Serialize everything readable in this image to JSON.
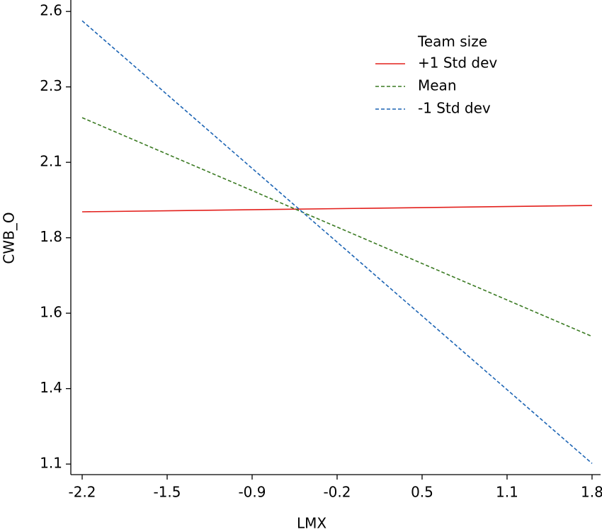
{
  "chart_data": {
    "type": "line",
    "x_label": "LMX",
    "y_label": "CWB_O",
    "legend_title": "Team size",
    "legend": "top-right",
    "x": [
      -2.2,
      1.8
    ],
    "series": [
      {
        "name": "+1 Std dev",
        "color": "#e3201c",
        "dash": "solid",
        "values": [
          1.936,
          1.957
        ]
      },
      {
        "name": "Mean",
        "color": "#3a7a22",
        "dash": "dashed",
        "values": [
          2.248,
          1.523
        ]
      },
      {
        "name": "-1 Std dev",
        "color": "#1c64b4",
        "dash": "dashed",
        "values": [
          2.569,
          1.102
        ]
      }
    ],
    "xlim": [
      -2.289,
      1.867
    ],
    "ylim": [
      1.065,
      2.638
    ],
    "xticks": [
      -2.2,
      {
        "value": -1.5333,
        "label": "-1.5"
      },
      {
        "value": -0.8667,
        "label": "-0.9"
      },
      -0.2,
      {
        "value": 0.4667,
        "label": "0.5"
      },
      {
        "value": 1.1333,
        "label": "1.1"
      },
      1.8
    ],
    "yticks": [
      1.1,
      {
        "value": 1.35,
        "label": "1.4"
      },
      1.6,
      {
        "value": 1.85,
        "label": "1.8"
      },
      2.1,
      {
        "value": 2.35,
        "label": "2.3"
      },
      2.6
    ],
    "grid": false
  }
}
